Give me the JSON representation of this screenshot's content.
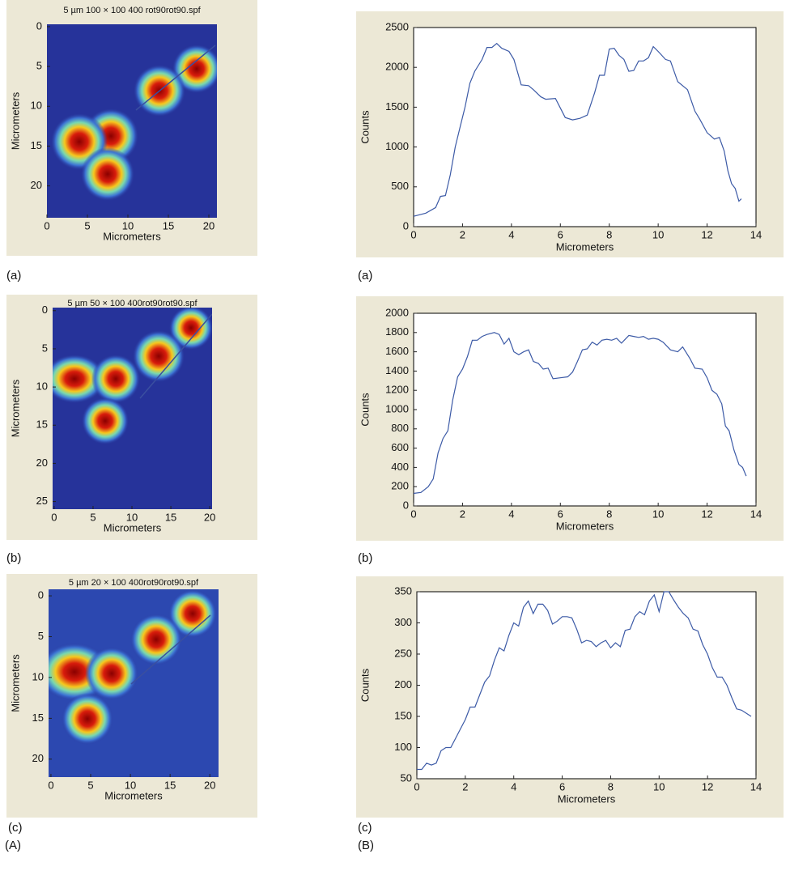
{
  "chart_data": [
    {
      "type": "image",
      "label": "(a)",
      "title": "5 µm 100 × 100 400 rot90rot90.spf",
      "xlabel": "Micrometers",
      "ylabel": "Micrometers",
      "xlim": [
        0,
        21
      ],
      "ylim": [
        -0.3,
        24
      ],
      "xticks": [
        0,
        5,
        10,
        15,
        20
      ],
      "yticks": [
        0,
        5,
        10,
        15,
        20
      ]
    },
    {
      "type": "image",
      "label": "(b)",
      "title": "5 µm 50 × 100 400rot90rot90.spf",
      "xlabel": "Micrometers",
      "ylabel": "Micrometers",
      "xlim": [
        -0.2,
        20.3
      ],
      "ylim": [
        -0.4,
        26
      ],
      "xticks": [
        0,
        5,
        10,
        15,
        20
      ],
      "yticks": [
        0,
        5,
        10,
        15,
        20,
        25
      ]
    },
    {
      "type": "image",
      "label": "(c)",
      "title": "5 µm 20 × 100 400rot90rot90.spf",
      "xlabel": "Micrometers",
      "ylabel": "Micrometers",
      "xlim": [
        -0.3,
        21.1
      ],
      "ylim": [
        -0.8,
        22.2
      ],
      "xticks": [
        0,
        5,
        10,
        15,
        20
      ],
      "yticks": [
        0,
        5,
        10,
        15,
        20
      ]
    },
    {
      "type": "line",
      "label": "(a)",
      "xlabel": "Micrometers",
      "ylabel": "Counts",
      "color": "#3c5aa6",
      "xlim": [
        0,
        14
      ],
      "ylim": [
        0,
        2500
      ],
      "xticks": [
        0,
        2,
        4,
        6,
        8,
        10,
        12,
        14
      ],
      "yticks": [
        0,
        500,
        1000,
        1500,
        2000,
        2500
      ],
      "x": [
        0,
        0.5,
        0.9,
        1.1,
        1.3,
        1.5,
        1.7,
        1.9,
        2.1,
        2.3,
        2.5,
        2.8,
        3.0,
        3.2,
        3.4,
        3.6,
        3.9,
        4.1,
        4.4,
        4.7,
        4.9,
        5.2,
        5.4,
        5.8,
        6.2,
        6.5,
        6.8,
        7.1,
        7.4,
        7.6,
        7.8,
        8.0,
        8.2,
        8.4,
        8.6,
        8.8,
        9.0,
        9.2,
        9.4,
        9.6,
        9.8,
        10.0,
        10.3,
        10.5,
        10.8,
        11.2,
        11.5,
        11.7,
        12.0,
        12.3,
        12.5,
        12.7,
        12.85,
        13.0,
        13.15,
        13.3,
        13.4
      ],
      "values": [
        130,
        170,
        240,
        380,
        390,
        650,
        1000,
        1250,
        1500,
        1800,
        1950,
        2100,
        2250,
        2250,
        2300,
        2240,
        2200,
        2100,
        1780,
        1770,
        1720,
        1630,
        1600,
        1610,
        1370,
        1340,
        1360,
        1400,
        1680,
        1900,
        1900,
        2230,
        2240,
        2150,
        2100,
        1950,
        1960,
        2080,
        2080,
        2120,
        2260,
        2200,
        2100,
        2080,
        1820,
        1720,
        1450,
        1350,
        1180,
        1100,
        1120,
        950,
        700,
        540,
        480,
        320,
        350
      ]
    },
    {
      "type": "line",
      "label": "(b)",
      "xlabel": "Micrometers",
      "ylabel": "Counts",
      "color": "#3c5aa6",
      "xlim": [
        0,
        14
      ],
      "ylim": [
        0,
        2000
      ],
      "xticks": [
        0,
        2,
        4,
        6,
        8,
        10,
        12,
        14
      ],
      "yticks": [
        0,
        200,
        400,
        600,
        800,
        1000,
        1200,
        1400,
        1600,
        1800,
        2000
      ],
      "x": [
        0,
        0.3,
        0.6,
        0.8,
        1.0,
        1.2,
        1.4,
        1.6,
        1.8,
        2.0,
        2.2,
        2.4,
        2.6,
        2.8,
        3.0,
        3.3,
        3.5,
        3.7,
        3.9,
        4.1,
        4.3,
        4.5,
        4.7,
        4.9,
        5.1,
        5.3,
        5.5,
        5.7,
        6.0,
        6.3,
        6.5,
        6.7,
        6.9,
        7.1,
        7.3,
        7.5,
        7.7,
        7.9,
        8.1,
        8.3,
        8.5,
        8.8,
        9.0,
        9.2,
        9.4,
        9.6,
        9.8,
        10.0,
        10.2,
        10.5,
        10.8,
        11.0,
        11.3,
        11.5,
        11.8,
        12.0,
        12.2,
        12.4,
        12.6,
        12.75,
        12.9,
        13.1,
        13.3,
        13.45,
        13.6
      ],
      "values": [
        130,
        140,
        200,
        280,
        550,
        700,
        780,
        1100,
        1340,
        1420,
        1550,
        1720,
        1720,
        1760,
        1780,
        1800,
        1780,
        1680,
        1740,
        1600,
        1570,
        1600,
        1620,
        1500,
        1480,
        1420,
        1430,
        1320,
        1330,
        1340,
        1390,
        1500,
        1620,
        1630,
        1700,
        1670,
        1720,
        1730,
        1720,
        1740,
        1690,
        1770,
        1760,
        1750,
        1760,
        1730,
        1740,
        1730,
        1700,
        1620,
        1600,
        1650,
        1530,
        1430,
        1420,
        1330,
        1200,
        1160,
        1060,
        830,
        780,
        580,
        430,
        400,
        310
      ]
    },
    {
      "type": "line",
      "label": "(c)",
      "xlabel": "Micrometers",
      "ylabel": "Counts",
      "color": "#3c5aa6",
      "xlim": [
        0,
        14
      ],
      "ylim": [
        50,
        350
      ],
      "xticks": [
        0,
        2,
        4,
        6,
        8,
        10,
        12,
        14
      ],
      "yticks": [
        50,
        100,
        150,
        200,
        250,
        300,
        350
      ],
      "x": [
        0,
        0.2,
        0.4,
        0.6,
        0.8,
        1.0,
        1.2,
        1.4,
        1.6,
        1.8,
        2.0,
        2.2,
        2.4,
        2.6,
        2.8,
        3.0,
        3.2,
        3.4,
        3.6,
        3.8,
        4.0,
        4.2,
        4.4,
        4.6,
        4.8,
        5.0,
        5.2,
        5.4,
        5.6,
        5.8,
        6.0,
        6.2,
        6.4,
        6.6,
        6.8,
        7.0,
        7.2,
        7.4,
        7.6,
        7.8,
        8.0,
        8.2,
        8.4,
        8.6,
        8.8,
        9.0,
        9.2,
        9.4,
        9.6,
        9.8,
        10.0,
        10.2,
        10.4,
        10.6,
        10.8,
        11.0,
        11.2,
        11.4,
        11.6,
        11.8,
        12.0,
        12.2,
        12.4,
        12.6,
        12.8,
        13.0,
        13.2,
        13.4,
        13.6,
        13.8
      ],
      "values": [
        65,
        65,
        75,
        72,
        75,
        95,
        100,
        100,
        115,
        130,
        145,
        165,
        165,
        185,
        205,
        215,
        240,
        260,
        255,
        280,
        300,
        295,
        325,
        335,
        315,
        330,
        330,
        320,
        298,
        303,
        310,
        310,
        308,
        290,
        268,
        272,
        270,
        262,
        268,
        272,
        260,
        268,
        262,
        288,
        290,
        310,
        318,
        313,
        335,
        345,
        318,
        350,
        350,
        337,
        325,
        315,
        308,
        290,
        287,
        265,
        250,
        228,
        213,
        213,
        200,
        180,
        162,
        160,
        155,
        150
      ]
    }
  ],
  "column_labels": [
    "(A)",
    "(B)"
  ]
}
